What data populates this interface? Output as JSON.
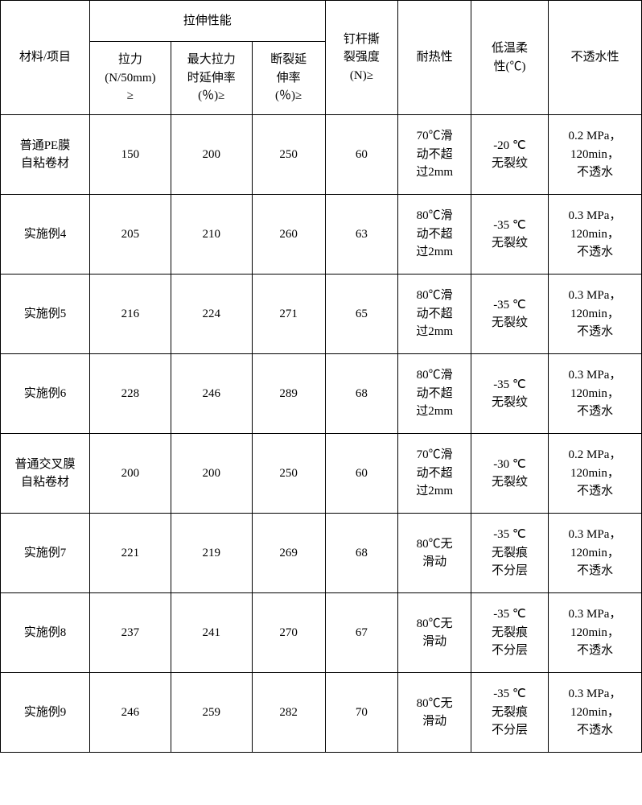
{
  "table": {
    "columns": {
      "material": "材料/项目",
      "tensile_group": "拉伸性能",
      "tensile_force": "拉力\n(N/50mm)\n≥",
      "max_elong": "最大拉力\n时延伸率\n(％)≥",
      "break_elong": "断裂延\n伸率\n(％)≥",
      "nail_tear": "钉杆撕\n裂强度\n(N)≥",
      "heat": "耐热性",
      "cold": "低温柔\n性(℃)",
      "water": "不透水性"
    },
    "rows": [
      {
        "material": "普通PE膜\n自粘卷材",
        "f": "150",
        "me": "200",
        "be": "250",
        "nt": "60",
        "heat": "70℃滑\n动不超\n过2mm",
        "cold": "-20 ℃\n无裂纹",
        "water": "0.2 MPa，\n120min，\n不透水"
      },
      {
        "material": "实施例4",
        "f": "205",
        "me": "210",
        "be": "260",
        "nt": "63",
        "heat": "80℃滑\n动不超\n过2mm",
        "cold": "-35 ℃\n无裂纹",
        "water": "0.3 MPa，\n120min，\n不透水"
      },
      {
        "material": "实施例5",
        "f": "216",
        "me": "224",
        "be": "271",
        "nt": "65",
        "heat": "80℃滑\n动不超\n过2mm",
        "cold": "-35 ℃\n无裂纹",
        "water": "0.3 MPa，\n120min，\n不透水"
      },
      {
        "material": "实施例6",
        "f": "228",
        "me": "246",
        "be": "289",
        "nt": "68",
        "heat": "80℃滑\n动不超\n过2mm",
        "cold": "-35 ℃\n无裂纹",
        "water": "0.3 MPa，\n120min，\n不透水"
      },
      {
        "material": "普通交叉膜\n自粘卷材",
        "f": "200",
        "me": "200",
        "be": "250",
        "nt": "60",
        "heat": "70℃滑\n动不超\n过2mm",
        "cold": "-30 ℃\n无裂纹",
        "water": "0.2 MPa，\n120min，\n不透水"
      },
      {
        "material": "实施例7",
        "f": "221",
        "me": "219",
        "be": "269",
        "nt": "68",
        "heat": "80℃无\n滑动",
        "cold": "-35 ℃\n无裂痕\n不分层",
        "water": "0.3 MPa，\n120min，\n不透水"
      },
      {
        "material": "实施例8",
        "f": "237",
        "me": "241",
        "be": "270",
        "nt": "67",
        "heat": "80℃无\n滑动",
        "cold": "-35 ℃\n无裂痕\n不分层",
        "water": "0.3 MPa，\n120min，\n不透水"
      },
      {
        "material": "实施例9",
        "f": "246",
        "me": "259",
        "be": "282",
        "nt": "70",
        "heat": "80℃无\n滑动",
        "cold": "-35 ℃\n无裂痕\n不分层",
        "water": "0.3 MPa，\n120min，\n不透水"
      }
    ],
    "border_color": "#000000",
    "background_color": "#ffffff",
    "text_color": "#000000",
    "font_size_pt": 11,
    "type": "table"
  }
}
